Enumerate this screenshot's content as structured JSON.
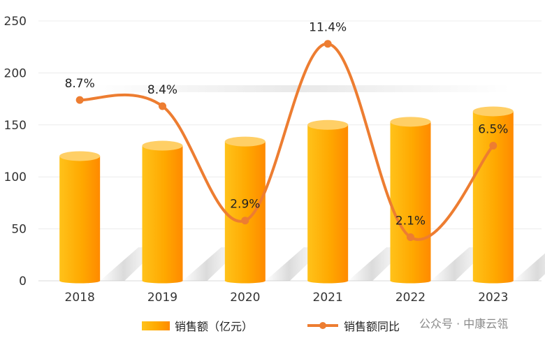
{
  "chart_data": {
    "type": "bar",
    "categories": [
      "2018",
      "2019",
      "2020",
      "2021",
      "2022",
      "2023"
    ],
    "series": [
      {
        "name": "销售额（亿元）",
        "type": "bar",
        "values": [
          120,
          130,
          134,
          150,
          153,
          163
        ],
        "color": "#FFA200"
      },
      {
        "name": "销售额同比",
        "type": "line",
        "values": [
          8.7,
          8.4,
          2.9,
          11.4,
          2.1,
          6.5
        ],
        "labels": [
          "8.7%",
          "8.4%",
          "2.9%",
          "11.4%",
          "2.1%",
          "6.5%"
        ],
        "color": "#ED7D31"
      }
    ],
    "yticks": [
      "0",
      "50",
      "100",
      "150",
      "200",
      "250"
    ],
    "ylim": [
      0,
      250
    ],
    "line_range": [
      0,
      12.5
    ],
    "grid": true,
    "legend_position": "bottom"
  },
  "watermark": "公众号 · 中康云瓴"
}
